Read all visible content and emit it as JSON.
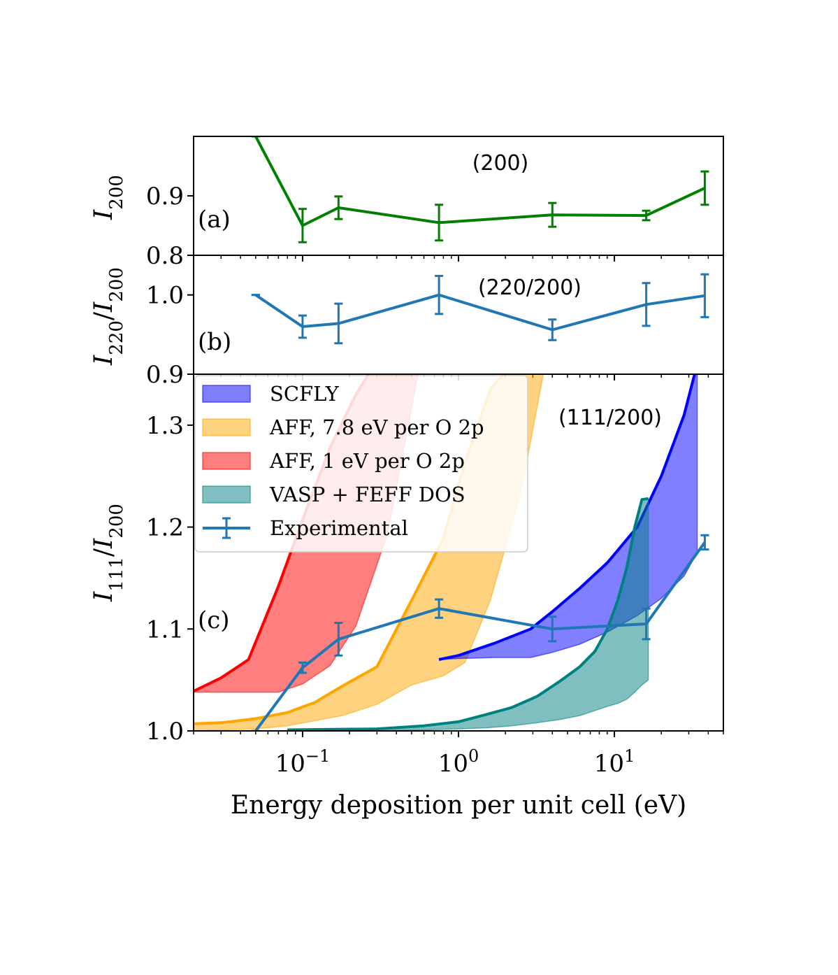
{
  "chart_data": [
    {
      "panel": "(a)",
      "type": "line",
      "annotation": "(200)",
      "ylabel": "I_200",
      "ylabel_main": "I",
      "ylabel_sub": "200",
      "xscale": "log",
      "xlim": [
        0.02,
        50
      ],
      "ylim": [
        0.8,
        1.0
      ],
      "yticks": [
        0.8,
        0.9
      ],
      "ytick_labels": [
        "0.8",
        "0.9"
      ],
      "color": "#008000",
      "series": [
        {
          "name": "I_200",
          "x": [
            0.05,
            0.1,
            0.17,
            0.75,
            4.0,
            16.0,
            38.0
          ],
          "y": [
            1.0,
            0.85,
            0.88,
            0.855,
            0.868,
            0.867,
            0.913
          ],
          "yerr": [
            0.0,
            0.028,
            0.019,
            0.03,
            0.02,
            0.008,
            0.028
          ]
        }
      ]
    },
    {
      "panel": "(b)",
      "type": "line",
      "annotation": "(220/200)",
      "ylabel": "I_220/I_200",
      "ylabel_main1": "I",
      "ylabel_sub1": "220",
      "ylabel_mid": "/",
      "ylabel_main2": "I",
      "ylabel_sub2": "200",
      "xscale": "log",
      "xlim": [
        0.02,
        50
      ],
      "ylim": [
        0.9,
        1.05
      ],
      "yticks": [
        0.9,
        1.0
      ],
      "ytick_labels": [
        "0.9",
        "1.0"
      ],
      "color": "#1f77b4",
      "series": [
        {
          "name": "I_220/I_200",
          "x": [
            0.05,
            0.1,
            0.17,
            0.75,
            4.0,
            16.0,
            38.0
          ],
          "y": [
            1.0,
            0.96,
            0.964,
            1.0,
            0.956,
            0.988,
            0.999
          ],
          "yerr": [
            0.0,
            0.014,
            0.025,
            0.024,
            0.013,
            0.027,
            0.027
          ]
        }
      ]
    },
    {
      "panel": "(c)",
      "type": "area",
      "annotation": "(111/200)",
      "ylabel": "I_111/I_200",
      "ylabel_main1": "I",
      "ylabel_sub1": "111",
      "ylabel_mid": "/",
      "ylabel_main2": "I",
      "ylabel_sub2": "200",
      "xlabel": "Energy deposition per unit cell (eV)",
      "xscale": "log",
      "xlim": [
        0.02,
        50
      ],
      "ylim": [
        1.0,
        1.35
      ],
      "yticks": [
        1.0,
        1.1,
        1.2,
        1.3
      ],
      "ytick_labels": [
        "1.0",
        "1.1",
        "1.2",
        "1.3"
      ],
      "xticks": [
        0.1,
        1,
        10
      ],
      "xtick_base": "10",
      "xtick_exponents": [
        "−1",
        "0",
        "1"
      ],
      "legend_position": "top-left",
      "legend": [
        {
          "label": "SCFLY",
          "kind": "band",
          "color": "#0000ff"
        },
        {
          "label": "AFF, 7.8 eV per O 2p",
          "kind": "band",
          "color": "#ffa500"
        },
        {
          "label": "AFF, 1 eV per O 2p",
          "kind": "band",
          "color": "#ff0000"
        },
        {
          "label": "VASP + FEFF DOS",
          "kind": "band",
          "color": "#008080"
        },
        {
          "label": "Experimental",
          "kind": "errorbar",
          "color": "#1f77b4"
        }
      ],
      "bands": [
        {
          "name": "AFF, 1 eV per O 2p",
          "color": "#ff0000",
          "fill_alpha": 0.5,
          "x": [
            0.02,
            0.03,
            0.045,
            0.07,
            0.1,
            0.15,
            0.22,
            0.35,
            0.55
          ],
          "upper": [
            1.039,
            1.052,
            1.07,
            1.142,
            1.207,
            1.278,
            1.33,
            1.38,
            1.4
          ],
          "lower": [
            1.038,
            1.038,
            1.038,
            1.038,
            1.046,
            1.064,
            1.103,
            1.193,
            1.35
          ]
        },
        {
          "name": "AFF, 7.8 eV per O 2p",
          "color": "#ffa500",
          "fill_alpha": 0.5,
          "x": [
            0.02,
            0.03,
            0.05,
            0.08,
            0.12,
            0.18,
            0.3,
            0.5,
            0.8,
            1.1,
            1.6,
            2.5,
            3.5
          ],
          "upper": [
            1.007,
            1.008,
            1.012,
            1.018,
            1.028,
            1.044,
            1.063,
            1.128,
            1.189,
            1.263,
            1.335,
            1.37,
            1.38
          ],
          "lower": [
            1.0,
            1.001,
            1.002,
            1.005,
            1.01,
            1.015,
            1.026,
            1.045,
            1.054,
            1.067,
            1.128,
            1.232,
            1.35
          ]
        },
        {
          "name": "SCFLY",
          "color": "#0000ff",
          "fill_alpha": 0.5,
          "x": [
            0.75,
            1.0,
            1.7,
            2.9,
            4.0,
            6.0,
            9.0,
            14.0,
            20.0,
            28.0,
            34.0
          ],
          "upper": [
            1.07,
            1.074,
            1.086,
            1.1,
            1.117,
            1.14,
            1.165,
            1.2,
            1.25,
            1.31,
            1.36
          ],
          "lower": [
            1.07,
            1.071,
            1.072,
            1.072,
            1.077,
            1.085,
            1.097,
            1.113,
            1.13,
            1.152,
            1.175
          ]
        },
        {
          "name": "VASP + FEFF DOS",
          "color": "#008080",
          "fill_alpha": 0.5,
          "x": [
            0.08,
            0.3,
            0.6,
            1.0,
            1.5,
            2.2,
            3.2,
            4.4,
            6.0,
            7.5,
            9.0,
            10.5,
            12.0,
            13.5,
            15.0,
            16.5
          ],
          "upper": [
            1.001,
            1.002,
            1.005,
            1.009,
            1.016,
            1.023,
            1.034,
            1.048,
            1.063,
            1.078,
            1.1,
            1.128,
            1.16,
            1.2,
            1.227,
            1.228
          ],
          "lower": [
            1.0,
            1.0,
            1.001,
            1.002,
            1.003,
            1.005,
            1.008,
            1.011,
            1.015,
            1.02,
            1.024,
            1.027,
            1.031,
            1.038,
            1.045,
            1.05
          ]
        }
      ],
      "series": [
        {
          "name": "Experimental",
          "color": "#1f77b4",
          "x": [
            0.05,
            0.1,
            0.17,
            0.75,
            4.0,
            16.0,
            38.0
          ],
          "y": [
            1.0,
            1.062,
            1.09,
            1.12,
            1.1,
            1.105,
            1.185
          ],
          "yerr": [
            0.0,
            0.005,
            0.016,
            0.009,
            0.012,
            0.015,
            0.007
          ]
        }
      ]
    }
  ]
}
